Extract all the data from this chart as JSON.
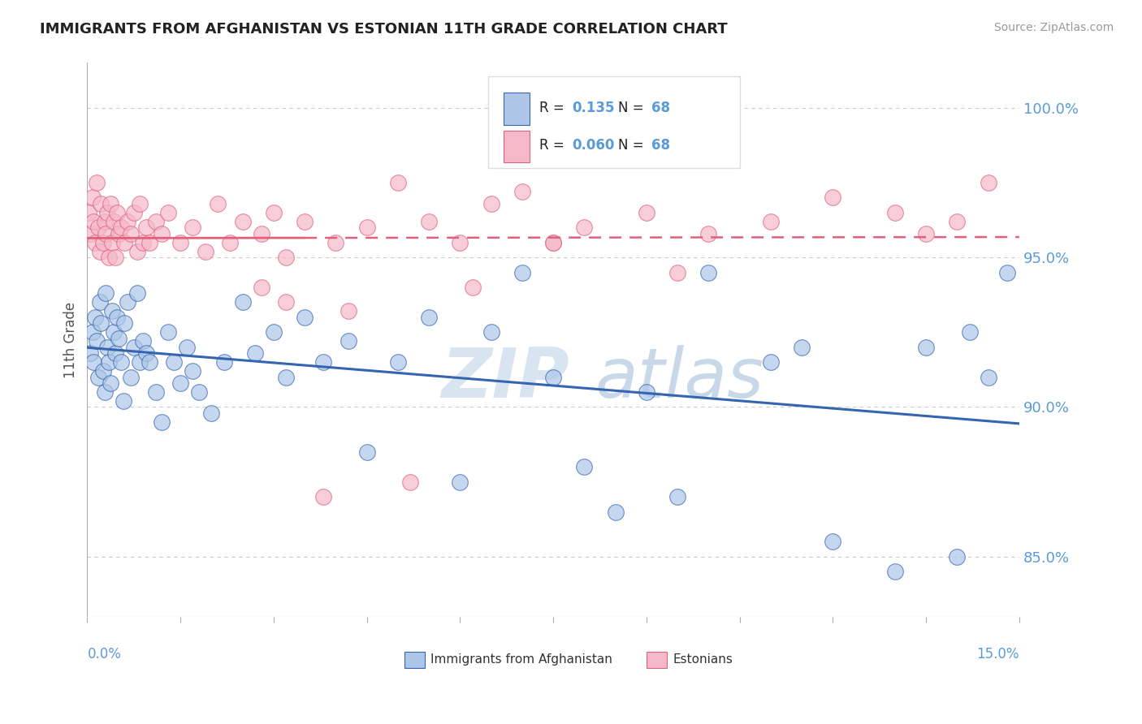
{
  "title": "IMMIGRANTS FROM AFGHANISTAN VS ESTONIAN 11TH GRADE CORRELATION CHART",
  "source": "Source: ZipAtlas.com",
  "ylabel": "11th Grade",
  "xlim": [
    0.0,
    15.0
  ],
  "ylim": [
    83.0,
    101.5
  ],
  "right_yticks": [
    85.0,
    90.0,
    95.0,
    100.0
  ],
  "series1_fill": "#adc6e8",
  "series2_fill": "#f5b8cb",
  "line1_color": "#3565b0",
  "line2_color": "#e0607a",
  "axis_color": "#5b9bd5",
  "title_color": "#222222",
  "watermark_color": "#d8e4f0",
  "r1_val": "0.135",
  "r2_val": "0.060",
  "n_val": "68",
  "blue_x": [
    0.05,
    0.08,
    0.1,
    0.12,
    0.15,
    0.18,
    0.2,
    0.22,
    0.25,
    0.28,
    0.3,
    0.32,
    0.35,
    0.38,
    0.4,
    0.42,
    0.45,
    0.48,
    0.5,
    0.55,
    0.58,
    0.6,
    0.65,
    0.7,
    0.75,
    0.8,
    0.85,
    0.9,
    0.95,
    1.0,
    1.1,
    1.2,
    1.3,
    1.4,
    1.5,
    1.6,
    1.7,
    1.8,
    2.0,
    2.2,
    2.5,
    2.7,
    3.0,
    3.2,
    3.5,
    3.8,
    4.2,
    4.5,
    5.0,
    5.5,
    6.0,
    6.5,
    7.0,
    7.5,
    8.0,
    8.5,
    9.0,
    9.5,
    10.0,
    11.0,
    11.5,
    12.0,
    13.0,
    13.5,
    14.0,
    14.2,
    14.5,
    14.8
  ],
  "blue_y": [
    91.8,
    92.5,
    91.5,
    93.0,
    92.2,
    91.0,
    93.5,
    92.8,
    91.2,
    90.5,
    93.8,
    92.0,
    91.5,
    90.8,
    93.2,
    92.5,
    91.8,
    93.0,
    92.3,
    91.5,
    90.2,
    92.8,
    93.5,
    91.0,
    92.0,
    93.8,
    91.5,
    92.2,
    91.8,
    91.5,
    90.5,
    89.5,
    92.5,
    91.5,
    90.8,
    92.0,
    91.2,
    90.5,
    89.8,
    91.5,
    93.5,
    91.8,
    92.5,
    91.0,
    93.0,
    91.5,
    92.2,
    88.5,
    91.5,
    93.0,
    87.5,
    92.5,
    94.5,
    91.0,
    88.0,
    86.5,
    90.5,
    87.0,
    94.5,
    91.5,
    92.0,
    85.5,
    84.5,
    92.0,
    85.0,
    92.5,
    91.0,
    94.5
  ],
  "pink_x": [
    0.02,
    0.05,
    0.08,
    0.1,
    0.12,
    0.15,
    0.18,
    0.2,
    0.22,
    0.25,
    0.28,
    0.3,
    0.32,
    0.35,
    0.38,
    0.4,
    0.42,
    0.45,
    0.48,
    0.5,
    0.55,
    0.6,
    0.65,
    0.7,
    0.75,
    0.8,
    0.85,
    0.9,
    0.95,
    1.0,
    1.1,
    1.2,
    1.3,
    1.5,
    1.7,
    1.9,
    2.1,
    2.3,
    2.5,
    2.8,
    3.0,
    3.2,
    3.5,
    4.0,
    4.5,
    5.0,
    5.5,
    6.0,
    6.5,
    7.0,
    7.5,
    8.0,
    9.0,
    10.0,
    11.0,
    12.0,
    13.0,
    13.5,
    14.0,
    14.5,
    2.8,
    3.2,
    3.8,
    4.2,
    5.2,
    6.2,
    7.5,
    9.5
  ],
  "pink_y": [
    96.5,
    95.8,
    97.0,
    96.2,
    95.5,
    97.5,
    96.0,
    95.2,
    96.8,
    95.5,
    96.2,
    95.8,
    96.5,
    95.0,
    96.8,
    95.5,
    96.2,
    95.0,
    96.5,
    95.8,
    96.0,
    95.5,
    96.2,
    95.8,
    96.5,
    95.2,
    96.8,
    95.5,
    96.0,
    95.5,
    96.2,
    95.8,
    96.5,
    95.5,
    96.0,
    95.2,
    96.8,
    95.5,
    96.2,
    95.8,
    96.5,
    95.0,
    96.2,
    95.5,
    96.0,
    97.5,
    96.2,
    95.5,
    96.8,
    97.2,
    95.5,
    96.0,
    96.5,
    95.8,
    96.2,
    97.0,
    96.5,
    95.8,
    96.2,
    97.5,
    94.0,
    93.5,
    87.0,
    93.2,
    87.5,
    94.0,
    95.5,
    94.5
  ]
}
